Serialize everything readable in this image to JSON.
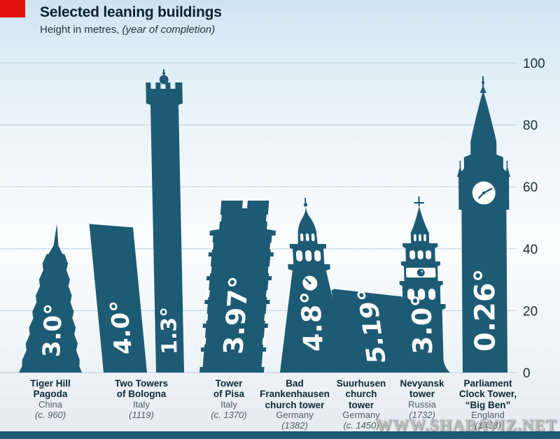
{
  "header": {
    "title": "Selected leaning buildings",
    "subtitle_prefix": "Height in metres, ",
    "subtitle_italic": "(year of completion)"
  },
  "watermark": {
    "text": "WWW.SHABAVIZ.NET"
  },
  "colors": {
    "tower": "#1d5a74",
    "accent_red": "#e3120b",
    "grid": "#c2d5e2",
    "axis_text": "#1b2f3a",
    "angle_text": "#ffffff",
    "bottom_bar": "#1d5a74"
  },
  "axis": {
    "ticks": [
      0,
      20,
      40,
      60,
      80,
      100
    ],
    "max": 100
  },
  "chart_data": {
    "type": "pictorial-bar",
    "title": "Selected leaning buildings",
    "subtitle": "Height in metres, (year of completion)",
    "ylabel": "Height in metres",
    "ylim": [
      0,
      100
    ],
    "yticks": [
      0,
      20,
      40,
      60,
      80,
      100
    ],
    "grid": true,
    "legend_position": "none",
    "buildings": [
      {
        "name": "Tiger Hill\nPagoda",
        "country": "China",
        "year": "(c. 960)",
        "towers": [
          {
            "lean_label": "3.0°",
            "lean_deg": 3.0,
            "height_m": 48,
            "shape": "pagoda",
            "lean_dir": "right"
          }
        ]
      },
      {
        "name": "Two Towers\nof Bologna",
        "country": "Italy",
        "year": "(1119)",
        "towers": [
          {
            "lean_label": "4.0°",
            "lean_deg": 4.0,
            "height_m": 48,
            "shape": "garisenda",
            "lean_dir": "left"
          },
          {
            "lean_label": "1.3°",
            "lean_deg": 1.3,
            "height_m": 97,
            "shape": "asinelli",
            "lean_dir": "left"
          }
        ]
      },
      {
        "name": "Tower\nof Pisa",
        "country": "Italy",
        "year": "(c. 1370)",
        "towers": [
          {
            "lean_label": "3.97°",
            "lean_deg": 3.97,
            "height_m": 56,
            "shape": "pisa",
            "lean_dir": "right"
          }
        ]
      },
      {
        "name": "Bad\nFrankenhausen\nchurch tower",
        "country": "Germany",
        "year": "(1382)",
        "towers": [
          {
            "lean_label": "4.8°",
            "lean_deg": 4.8,
            "height_m": 56,
            "shape": "frankenhausen",
            "lean_dir": "left"
          }
        ]
      },
      {
        "name": "Suurhusen\nchurch\ntower",
        "country": "Germany",
        "year": "(c. 1450)",
        "towers": [
          {
            "lean_label": "5.19°",
            "lean_deg": 5.19,
            "height_m": 27,
            "shape": "suurhusen",
            "lean_dir": "left"
          }
        ]
      },
      {
        "name": "Nevyansk\ntower",
        "country": "Russia",
        "year": "(1732)",
        "towers": [
          {
            "lean_label": "3.0°",
            "lean_deg": 3.0,
            "height_m": 56,
            "shape": "nevyansk",
            "lean_dir": "left"
          }
        ]
      },
      {
        "name": "Parliament\nClock Tower,\n“Big Ben”",
        "country": "England",
        "year": "(1858)",
        "towers": [
          {
            "lean_label": "0.26°",
            "lean_deg": 0.26,
            "height_m": 96,
            "shape": "bigben",
            "lean_dir": "left"
          }
        ]
      }
    ]
  }
}
